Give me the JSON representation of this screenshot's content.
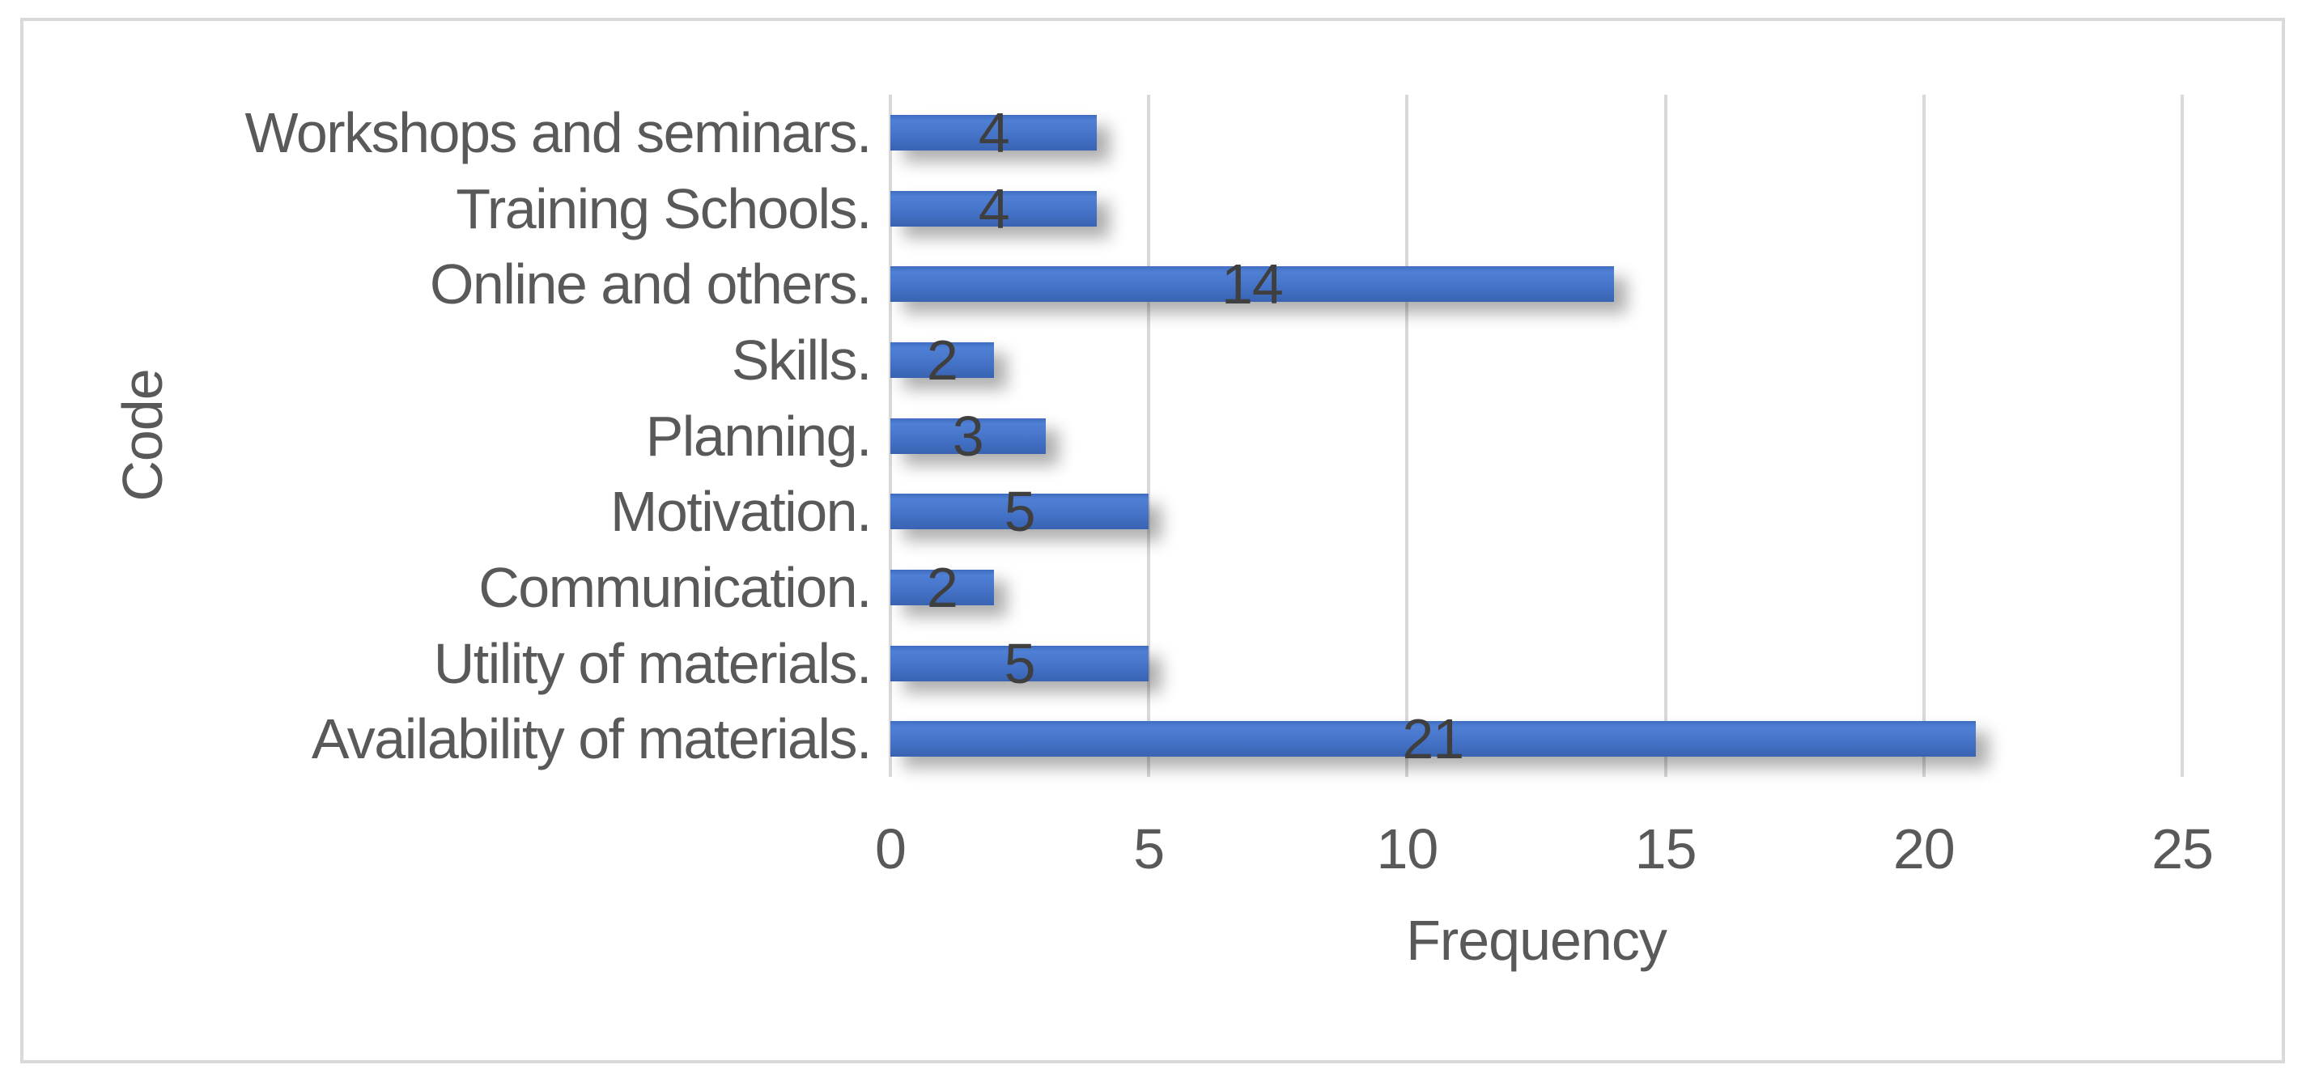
{
  "figure": {
    "background_color": "#FFFFFF",
    "border_color": "#D9D9D9"
  },
  "chart_data": {
    "type": "bar",
    "orientation": "horizontal",
    "title": "",
    "categories": [
      "Workshops and seminars.",
      "Training Schools.",
      "Online and others.",
      "Skills.",
      "Planning.",
      "Motivation.",
      "Communication.",
      "Utility of materials.",
      "Availability of materials."
    ],
    "values": [
      4,
      4,
      14,
      2,
      3,
      5,
      2,
      5,
      21
    ],
    "xlabel": "Frequency",
    "ylabel": "Code",
    "xlim": [
      0,
      25
    ],
    "xticks": [
      "0",
      "5",
      "10",
      "15",
      "20",
      "25"
    ],
    "grid": "vertical",
    "legend": "none",
    "data_labels": "inside-center",
    "colors": {
      "bar": "#4472C4",
      "bar_gradient_top": "#5080D5",
      "bar_gradient_bottom": "#3963B2",
      "gridline": "#D9D9D9",
      "axis_text": "#595959",
      "data_label": "#3F3F3F"
    }
  }
}
